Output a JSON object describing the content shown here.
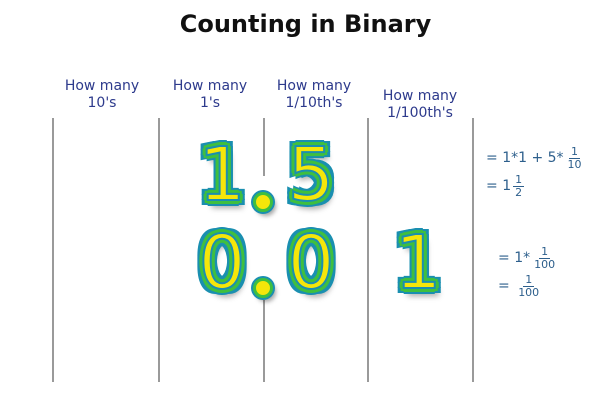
{
  "title": "Counting in Binary",
  "headers": [
    {
      "line1": "How many",
      "line2": "10's"
    },
    {
      "line1": "How many",
      "line2": "1's"
    },
    {
      "line1": "How many",
      "line2": "1/10th's"
    },
    {
      "line1": "How many",
      "line2": "1/100th's"
    }
  ],
  "row1": {
    "ones": "1",
    "tenths": "5"
  },
  "row2": {
    "ones": "0",
    "tenths": "0",
    "hundredths": "1"
  },
  "math1": {
    "line1": {
      "eq": "=",
      "a": "1*1 + 5*",
      "num": "1",
      "den": "10"
    },
    "line2": {
      "eq": "=",
      "whole": "1",
      "num": "1",
      "den": "2"
    }
  },
  "math2": {
    "line1": {
      "eq": "=",
      "a": "1*",
      "num": "1",
      "den": "100"
    },
    "line2": {
      "eq": "=",
      "num": "1",
      "den": "100"
    }
  },
  "colors": {
    "digit_fill": "#f5e60a",
    "digit_outline_inner": "#3fbf3f",
    "digit_outline_outer": "#1a8fb0",
    "header_text": "#2d3a8c",
    "math_text": "#2d5f8c",
    "divider": "#9a9a9a"
  }
}
